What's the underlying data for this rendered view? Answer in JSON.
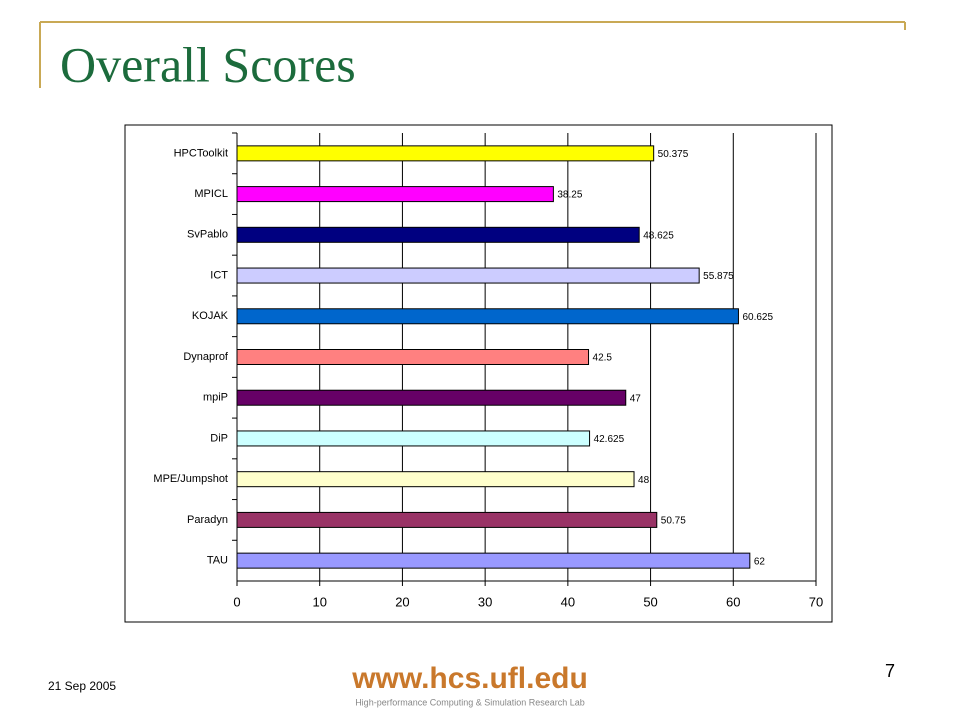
{
  "chart_data": {
    "type": "hbar",
    "title": "Overall Scores",
    "categories": [
      "HPCToolkit",
      "MPICL",
      "SvPablo",
      "ICT",
      "KOJAK",
      "Dynaprof",
      "mpiP",
      "DiP",
      "MPE/Jumpshot",
      "Paradyn",
      "TAU"
    ],
    "values": [
      50.375,
      38.25,
      48.625,
      55.875,
      60.625,
      42.5,
      47,
      42.625,
      48,
      50.75,
      62
    ],
    "colors": [
      "#ffff00",
      "#ff00ff",
      "#000080",
      "#ccccff",
      "#0066cc",
      "#ff8080",
      "#660066",
      "#ccffff",
      "#ffffcc",
      "#993366",
      "#9999ff"
    ],
    "xlim": [
      0,
      70
    ],
    "xticks": [
      0,
      10,
      20,
      30,
      40,
      50,
      60,
      70
    ],
    "grid": true
  },
  "footer": {
    "date": "21 Sep 2005",
    "page_number": "7",
    "url": "www.hcs.ufl.edu",
    "lab": "High-performance Computing & Simulation Research Lab"
  }
}
